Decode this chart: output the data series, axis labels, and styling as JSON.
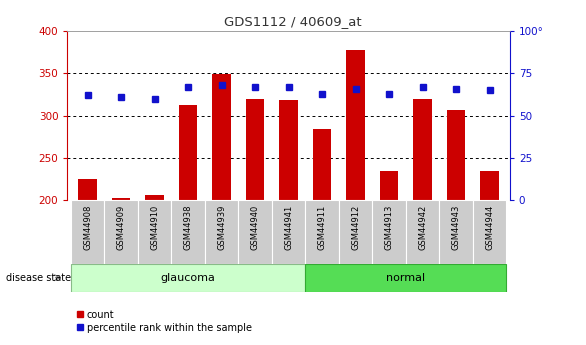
{
  "title": "GDS1112 / 40609_at",
  "samples": [
    "GSM44908",
    "GSM44909",
    "GSM44910",
    "GSM44938",
    "GSM44939",
    "GSM44940",
    "GSM44941",
    "GSM44911",
    "GSM44912",
    "GSM44913",
    "GSM44942",
    "GSM44943",
    "GSM44944"
  ],
  "counts": [
    225,
    203,
    206,
    312,
    349,
    320,
    318,
    284,
    377,
    235,
    320,
    307,
    234
  ],
  "percentiles": [
    62,
    61,
    60,
    67,
    68,
    67,
    67,
    63,
    66,
    63,
    67,
    66,
    65
  ],
  "groups": [
    "glaucoma",
    "glaucoma",
    "glaucoma",
    "glaucoma",
    "glaucoma",
    "glaucoma",
    "glaucoma",
    "normal",
    "normal",
    "normal",
    "normal",
    "normal",
    "normal"
  ],
  "count_base": 200,
  "ylim_left": [
    200,
    400
  ],
  "ylim_right": [
    0,
    100
  ],
  "yticks_left": [
    200,
    250,
    300,
    350,
    400
  ],
  "yticks_right": [
    0,
    25,
    50,
    75,
    100
  ],
  "bar_color": "#cc0000",
  "dot_color": "#1111cc",
  "glaucoma_color": "#ccffcc",
  "normal_color": "#55dd55",
  "label_bg_color": "#cccccc",
  "title_color": "#333333",
  "left_axis_color": "#cc0000",
  "right_axis_color": "#1111cc",
  "group_label_glaucoma": "glaucoma",
  "group_label_normal": "normal",
  "disease_state_label": "disease state",
  "legend_count": "count",
  "legend_percentile": "percentile rank within the sample",
  "fig_width": 5.86,
  "fig_height": 3.45,
  "dpi": 100
}
